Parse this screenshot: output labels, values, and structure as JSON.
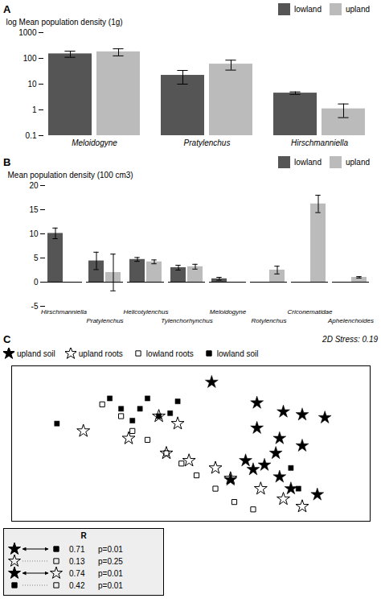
{
  "chart_data": [
    {
      "type": "bar",
      "title": "A",
      "ylabel": "log Mean population density (1g)",
      "categories": [
        "Meloidogyne",
        "Pratylenchus",
        "Hirschmanniella"
      ],
      "series": [
        {
          "name": "lowland",
          "color": "#555555",
          "values": [
            150,
            22,
            4.5
          ],
          "errors": [
            40,
            12,
            0.5
          ]
        },
        {
          "name": "upland",
          "color": "#bbbbbb",
          "values": [
            180,
            60,
            1.1
          ],
          "errors": [
            55,
            25,
            0.6
          ]
        }
      ],
      "log": "y",
      "ylim": [
        0.1,
        1000
      ],
      "yticks": [
        0.1,
        1,
        10,
        100,
        1000
      ],
      "legend": "upper right"
    },
    {
      "type": "bar",
      "title": "B",
      "ylabel": "Mean population density (100 cm3)",
      "categories": [
        "Hirschmanniella",
        "Pratylenchus",
        "Helicotylenchus",
        "Tylenchorhynchus",
        "Meloidogyne",
        "Rotylenchus",
        "Criconematidae",
        "Aphelenchoides"
      ],
      "series": [
        {
          "name": "lowland",
          "color": "#555555",
          "values": [
            10.1,
            4.4,
            4.7,
            3.0,
            0.7,
            0.0,
            0.0,
            0.0
          ],
          "errors": [
            1.1,
            1.8,
            0.4,
            0.5,
            0.3,
            0.0,
            0.0,
            0.0
          ]
        },
        {
          "name": "upland",
          "color": "#bbbbbb",
          "values": [
            0.0,
            2.0,
            4.2,
            3.2,
            0.0,
            2.5,
            16.2,
            1.0
          ],
          "errors": [
            0.0,
            3.8,
            0.4,
            0.5,
            0.0,
            0.8,
            1.8,
            0.15
          ]
        }
      ],
      "ylim": [
        -5,
        20
      ],
      "yticks": [
        -5,
        0,
        5,
        10,
        15,
        20
      ],
      "legend": "upper right"
    },
    {
      "type": "scatter",
      "title": "C",
      "annotation": "2D Stress: 0.19",
      "xlim": [
        0.05,
        1.0
      ],
      "ylim": [
        0.0,
        1.05
      ],
      "tick_labels": false,
      "legend": "upper left",
      "series": [
        {
          "name": "upland soil",
          "color": "#000000",
          "marker": "star",
          "x": [
            0.58,
            0.7,
            0.77,
            0.82,
            0.88,
            0.7,
            0.76,
            0.82,
            0.75,
            0.67,
            0.72,
            0.69,
            0.76,
            0.63,
            0.79,
            0.86
          ],
          "y": [
            0.94,
            0.8,
            0.74,
            0.72,
            0.7,
            0.63,
            0.56,
            0.51,
            0.46,
            0.41,
            0.38,
            0.35,
            0.3,
            0.28,
            0.22,
            0.18
          ]
        },
        {
          "name": "upland roots",
          "color": "#000000",
          "marker": "star-open",
          "x": [
            0.24,
            0.36,
            0.44,
            0.49,
            0.46,
            0.52,
            0.59,
            0.63,
            0.71,
            0.77,
            0.82
          ],
          "y": [
            0.61,
            0.56,
            0.71,
            0.66,
            0.46,
            0.41,
            0.36,
            0.29,
            0.22,
            0.15,
            0.1
          ]
        },
        {
          "name": "lowland roots",
          "color": "#000000",
          "marker": "square-open",
          "x": [
            0.29,
            0.34,
            0.37,
            0.41,
            0.46,
            0.5,
            0.54,
            0.59,
            0.64,
            0.69
          ],
          "y": [
            0.79,
            0.71,
            0.61,
            0.55,
            0.46,
            0.39,
            0.31,
            0.22,
            0.13,
            0.08
          ]
        },
        {
          "name": "lowland soil",
          "color": "#000000",
          "marker": "square",
          "x": [
            0.17,
            0.31,
            0.34,
            0.37,
            0.41,
            0.39,
            0.44,
            0.49,
            0.47,
            0.79,
            0.81
          ],
          "y": [
            0.66,
            0.83,
            0.76,
            0.68,
            0.83,
            0.76,
            0.71,
            0.81,
            0.73,
            0.36,
            0.22
          ]
        }
      ],
      "table": {
        "title": "R",
        "rows": [
          {
            "from": "upland soil",
            "to": "lowland soil",
            "line_style": "solid",
            "r": 0.71,
            "p": "p=0.01"
          },
          {
            "from": "upland roots",
            "to": "lowland roots",
            "line_style": "dotted",
            "r": 0.13,
            "p": "p=0.25"
          },
          {
            "from": "upland soil",
            "to": "upland roots",
            "line_style": "solid",
            "r": 0.74,
            "p": "p=0.01"
          },
          {
            "from": "lowland soil",
            "to": "lowland roots",
            "line_style": "dotted",
            "r": 0.42,
            "p": "p=0.01"
          }
        ]
      }
    }
  ]
}
